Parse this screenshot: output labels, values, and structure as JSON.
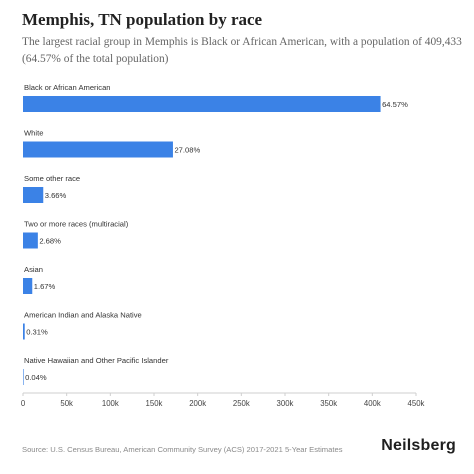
{
  "header": {
    "title": "Memphis, TN population by race",
    "subtitle": "The largest racial group in Memphis is Black or African American, with a population of 409,433 (64.57% of the total population)"
  },
  "footer": {
    "source": "Source: U.S. Census Bureau, American Community Survey (ACS) 2017-2021 5-Year Estimates",
    "brand": "Neilsberg"
  },
  "colors": {
    "bar": "#3b82e6",
    "axis": "#cfcfcf",
    "text": "#333333"
  },
  "chart_data": {
    "type": "bar",
    "orientation": "horizontal",
    "categories": [
      "Black or African American",
      "White",
      "Some other race",
      "Two or more races (multiracial)",
      "Asian",
      "American Indian and Alaska Native",
      "Native Hawaiian and Other Pacific Islander"
    ],
    "values": [
      409433,
      171700,
      23200,
      17000,
      10600,
      1970,
      250
    ],
    "labels": [
      "64.57%",
      "27.08%",
      "3.66%",
      "2.68%",
      "1.67%",
      "0.31%",
      "0.04%"
    ],
    "xlim": [
      0,
      450000
    ],
    "xticks": [
      0,
      50000,
      100000,
      150000,
      200000,
      250000,
      300000,
      350000,
      400000,
      450000
    ],
    "xtick_labels": [
      "0",
      "50k",
      "100k",
      "150k",
      "200k",
      "250k",
      "300k",
      "350k",
      "400k",
      "450k"
    ],
    "grid": false,
    "legend": false
  }
}
